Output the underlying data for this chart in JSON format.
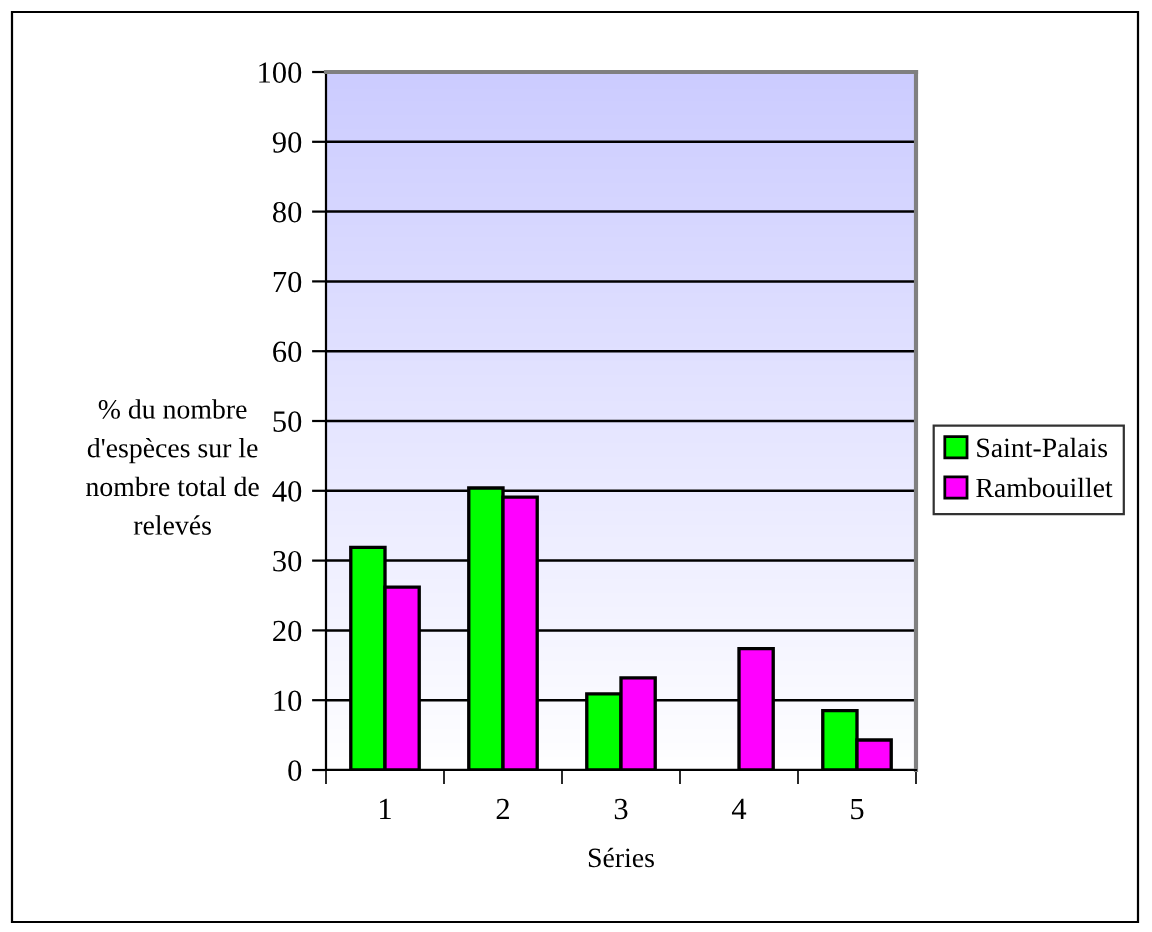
{
  "chart_data": {
    "type": "bar",
    "xlabel": "Séries",
    "ylabel": "% du nombre\nd'espèces sur le\nnombre total de\nrelevés",
    "categories": [
      "1",
      "2",
      "3",
      "4",
      "5"
    ],
    "series": [
      {
        "name": "Saint-Palais",
        "color": "#00ff00",
        "values": [
          31.9,
          40.4,
          10.9,
          null,
          8.5
        ]
      },
      {
        "name": "Rambouillet",
        "color": "#ff00ff",
        "values": [
          26.2,
          39.1,
          13.2,
          17.4,
          4.3
        ]
      }
    ],
    "ylim": [
      0,
      100
    ],
    "yticks": [
      0,
      10,
      20,
      30,
      40,
      50,
      60,
      70,
      80,
      90,
      100
    ],
    "grid": "y",
    "legend": "right"
  }
}
